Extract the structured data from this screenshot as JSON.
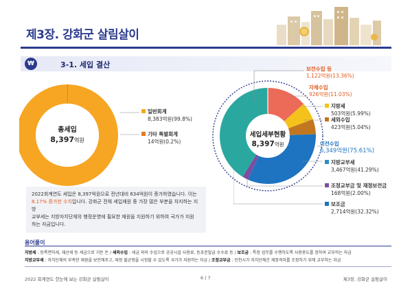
{
  "header": {
    "chapter_title": "제3장. 강화군 살림살이"
  },
  "section": {
    "badge": "₩",
    "title": "3-1. 세입 결산"
  },
  "colors": {
    "navy": "#2b3a8c",
    "general": "#f6a623",
    "special": "#e07a22",
    "subsidy": "#ec6a58",
    "self": "#f0b21a",
    "local_tax": "#f5c21c",
    "non_tax": "#c1761f",
    "transfer": "#2aa8a0",
    "local_grant": "#2a8ec4",
    "adjust": "#7b4ea1",
    "assist": "#1e74c0"
  },
  "total_chart": {
    "center_title": "총세입",
    "center_value": "8,397",
    "center_unit": "억원",
    "items": [
      {
        "name": "일반회계",
        "value": "8,383억원(99.8%)"
      },
      {
        "name": "기타 특별회계",
        "value": "14억원(0.2%)"
      }
    ]
  },
  "detail_chart": {
    "center_title": "세입세부현황",
    "center_value": "8,397",
    "center_unit": "억원",
    "labels": {
      "subsidy": {
        "name": "보전수입 등",
        "value": "1,122억원(13.36%)"
      },
      "self": {
        "name": "자체수입",
        "value": "926억원(11.03%)"
      },
      "local_tax": {
        "name": "지방세",
        "value": "503억원(5.99%)"
      },
      "non_tax": {
        "name": "세외수입",
        "value": "423억원(5.04%)"
      },
      "transfer": {
        "name": "이전수입",
        "value": "6,349억원(75.61%)"
      },
      "local_grant": {
        "name": "지방교부세",
        "value": "3,467억원(41.29%)"
      },
      "adjust": {
        "name": "조정교부금 및 재정보전금",
        "value": "168억원(2.00%)"
      },
      "assist": {
        "name": "보조금",
        "value": "2,714억원(32.32%)"
      }
    }
  },
  "description": {
    "line1": "2022회계연도 세입은 8,397억원으로 전년대비 634억원이 증가하였습니다. 이는",
    "accent": "8.17% 증가한 수치",
    "line2_rest": "입니다. 강화군 전체 세입재원 중 가장 많은 부분을 차지하는 지방",
    "line3": "교부세는 지방자치단체의 행정운영에 필요한 재원을 지원하기 위하여 국가가 지원",
    "line4": "하는 자금입니다."
  },
  "glossary": {
    "title": "용어풀이",
    "t1": "지방세",
    "d1": " : 등록면허세, 재산세 등 세금으로 거둔 돈 / ",
    "t2": "세외수입",
    "d2": " : 세금 외의 수입으로 공공시설 사용료, 등초본발급 수수료 등 / ",
    "t3": "보조금",
    "d3": " : 특정 업무를 수행하도록 사용용도를 정하여 교부하는 자금",
    "t4": "지방교부세",
    "d4": " : 자치단체의 부족한 재원을 보전해주고, 재정 불균형을 시정할 수 있도록 국가가 지원하는 자금 / ",
    "t5": "조정교부금",
    "d5": " : 인천시가 자치단체간 재정격차를 조정하기 위해 교부하는 자금"
  },
  "footer": {
    "left": "2022 회계연도 한눈에 보는 강화군 살림살이",
    "page": "6  |  7",
    "right": "제3장. 강화군 살림살이"
  }
}
